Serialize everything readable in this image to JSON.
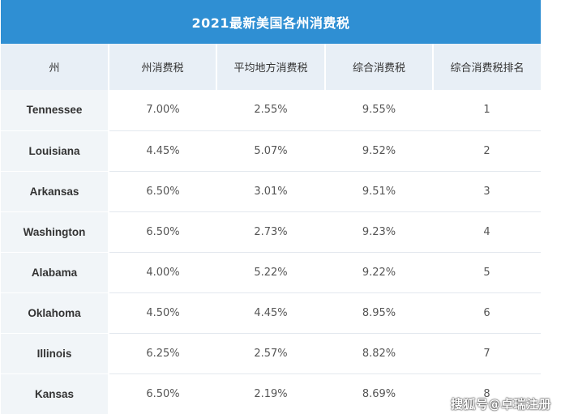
{
  "title": "2021最新美国各州消费税",
  "columns": [
    "州",
    "州消费税",
    "平均地方消费税",
    "综合消费税",
    "综合消费税排名"
  ],
  "rows": [
    {
      "state": "Tennessee",
      "state_tax": "7.00%",
      "local_tax": "2.55%",
      "combined": "9.55%",
      "rank": "1"
    },
    {
      "state": "Louisiana",
      "state_tax": "4.45%",
      "local_tax": "5.07%",
      "combined": "9.52%",
      "rank": "2"
    },
    {
      "state": "Arkansas",
      "state_tax": "6.50%",
      "local_tax": "3.01%",
      "combined": "9.51%",
      "rank": "3"
    },
    {
      "state": "Washington",
      "state_tax": "6.50%",
      "local_tax": "2.73%",
      "combined": "9.23%",
      "rank": "4"
    },
    {
      "state": "Alabama",
      "state_tax": "4.00%",
      "local_tax": "5.22%",
      "combined": "9.22%",
      "rank": "5"
    },
    {
      "state": "Oklahoma",
      "state_tax": "4.50%",
      "local_tax": "4.45%",
      "combined": "8.95%",
      "rank": "6"
    },
    {
      "state": "Illinois",
      "state_tax": "6.25%",
      "local_tax": "2.57%",
      "combined": "8.82%",
      "rank": "7"
    },
    {
      "state": "Kansas",
      "state_tax": "6.50%",
      "local_tax": "2.19%",
      "combined": "8.69%",
      "rank": "8"
    }
  ],
  "watermark": "搜狐号@卓瑞注册",
  "colors": {
    "header_blue": "#2f8fd3",
    "column_header_bg": "#e8eff6",
    "state_col_bg": "#f1f5f8"
  }
}
